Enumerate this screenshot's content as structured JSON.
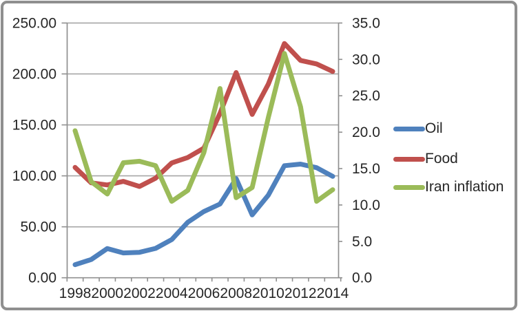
{
  "window": {
    "background": "#ffffff",
    "border_color": "#8f8f8f"
  },
  "colors": {
    "oil_line": "#4F81BD",
    "food_line": "#C0504D",
    "iran_inflation_line": "#9BBB59",
    "gridline": "#A6A6A6",
    "axis_line": "#8F8F8F",
    "axis_text": "#262626"
  },
  "chart_data": {
    "type": "line",
    "title": "",
    "xlabel": "",
    "ylabel_left": "",
    "ylabel_right": "",
    "grid": true,
    "legend_position": "right",
    "x": [
      1998,
      1999,
      2000,
      2001,
      2002,
      2003,
      2004,
      2005,
      2006,
      2007,
      2008,
      2009,
      2010,
      2011,
      2012,
      2013,
      2014
    ],
    "x_tick_labels": [
      "1998",
      "2000",
      "2002",
      "2004",
      "2006",
      "2008",
      "2010",
      "2012",
      "2014"
    ],
    "left_axis": {
      "min": 0,
      "max": 250,
      "step": 50,
      "tick_labels": [
        "0.00",
        "50.00",
        "100.00",
        "150.00",
        "200.00",
        "250.00"
      ]
    },
    "right_axis": {
      "min": 0,
      "max": 35,
      "step": 5,
      "tick_labels": [
        "0.0",
        "5.0",
        "10.0",
        "15.0",
        "20.0",
        "25.0",
        "30.0",
        "35.0"
      ]
    },
    "series": [
      {
        "name": "Oil",
        "axis": "left",
        "color": "#4F81BD",
        "values": [
          12.8,
          17.9,
          28.7,
          24.4,
          25.0,
          28.8,
          37.5,
          54.5,
          65.0,
          72.4,
          97.3,
          61.7,
          81.0,
          110.0,
          111.5,
          108.0,
          99.5
        ]
      },
      {
        "name": "Food",
        "axis": "left",
        "color": "#C0504D",
        "values": [
          108.3,
          93.2,
          91.1,
          94.6,
          89.6,
          97.7,
          112.7,
          118.0,
          127.2,
          161.4,
          201.4,
          160.3,
          190.0,
          229.9,
          213.3,
          209.8,
          202.5
        ]
      },
      {
        "name": "Iran inflation",
        "axis": "right",
        "color": "#9BBB59",
        "values": [
          20.2,
          13.2,
          11.5,
          15.8,
          16.0,
          15.4,
          10.5,
          12.0,
          17.2,
          26.0,
          11.0,
          12.4,
          22.0,
          30.8,
          23.5,
          10.5,
          12.1
        ]
      }
    ]
  },
  "legend": {
    "items": [
      {
        "label": "Oil",
        "color": "#4F81BD"
      },
      {
        "label": "Food",
        "color": "#C0504D"
      },
      {
        "label": "Iran inflation",
        "color": "#9BBB59"
      }
    ]
  }
}
